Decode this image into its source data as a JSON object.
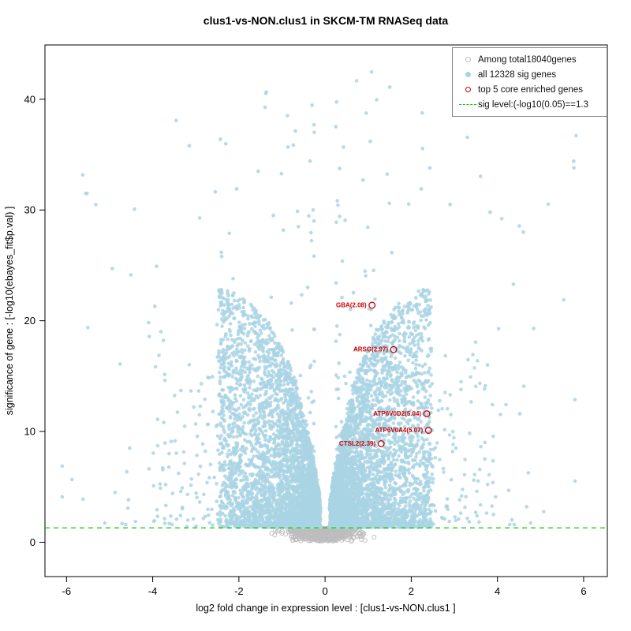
{
  "title": "clus1-vs-NON.clus1 in SKCM-TM RNASeq data",
  "chart_data": {
    "type": "scatter",
    "subtype": "volcano",
    "title": "clus1-vs-NON.clus1 in SKCM-TM RNASeq data",
    "xlabel": "log2 fold change in expression level : [clus1-vs-NON.clus1 ]",
    "ylabel": "significance of gene : [-log10(ebayes_fit$p.val) ]",
    "xlim": [
      -6.5,
      6.55
    ],
    "ylim": [
      -3.1,
      44.9
    ],
    "xticks": [
      -6,
      -4,
      -2,
      0,
      2,
      4,
      6
    ],
    "yticks": [
      0,
      10,
      20,
      30,
      40
    ],
    "grid": false,
    "sig_level": 1.3,
    "counts": {
      "total_genes": 18040,
      "sig_genes": 12328,
      "core_enriched": 5
    },
    "colors": {
      "nonsig": "#bdbdbd",
      "sig": "#a9d4e4",
      "highlight": "#cc0000",
      "sig_line": "#00cc00",
      "axis": "#000000"
    },
    "legend": {
      "position": "top-right",
      "items": [
        {
          "label": "Among total18040genes",
          "swatch": "open-circle",
          "color": "#bdbdbd"
        },
        {
          "label": "all 12328 sig genes",
          "swatch": "filled-circle",
          "color": "#a9d4e4"
        },
        {
          "label": "top 5 core enriched genes",
          "swatch": "open-circle",
          "color": "#cc0000"
        },
        {
          "label": "sig level:(-log10(0.05)==1.3",
          "swatch": "dashed-line",
          "color": "#00cc00"
        }
      ]
    },
    "highlighted_genes": [
      {
        "label": "GBA(2.08)",
        "x": 1.09,
        "y": 21.4
      },
      {
        "label": "ARSG(2.97)",
        "x": 1.59,
        "y": 17.4
      },
      {
        "label": "ATP6V0D2(5.04)",
        "x": 2.36,
        "y": 11.6
      },
      {
        "label": "ATP6V0A4(5.07)",
        "x": 2.4,
        "y": 10.1
      },
      {
        "label": "CTSL2(2.39)",
        "x": 1.3,
        "y": 8.9
      }
    ],
    "notable_points": [
      [
        1.5,
        41.1
      ],
      [
        -3.15,
        35.8
      ],
      [
        2.43,
        33.8
      ],
      [
        5.77,
        34.4
      ],
      [
        0.88,
        32.7
      ],
      [
        2.23,
        31.9
      ],
      [
        -2.05,
        31.9
      ],
      [
        -2.4,
        25.8
      ],
      [
        -3.95,
        21.3
      ],
      [
        4.52,
        11.6
      ],
      [
        3.83,
        29.8
      ],
      [
        -1.55,
        33.5
      ],
      [
        1.05,
        36.2
      ],
      [
        2.9,
        30.5
      ],
      [
        4.6,
        28.0
      ],
      [
        -1.2,
        29.5
      ]
    ],
    "cloud_spec": {
      "seed": 20,
      "nonsig_count": 450,
      "sig_dense_per_side": 4200,
      "sig_band_per_side": 260,
      "sig_outlier_per_side": 150
    }
  }
}
